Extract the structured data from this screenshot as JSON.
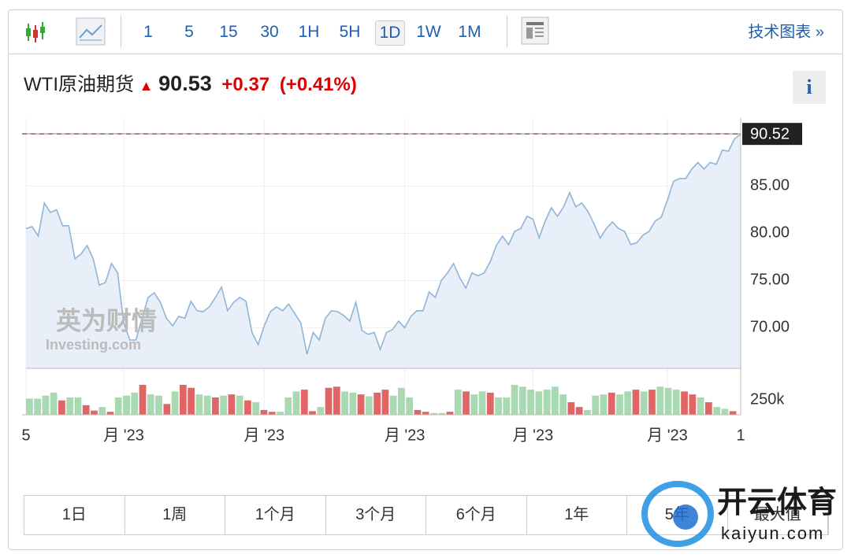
{
  "toolbar": {
    "intervals": [
      "1",
      "5",
      "15",
      "30",
      "1H",
      "5H",
      "1D",
      "1W",
      "1M"
    ],
    "active_interval": 6,
    "tech_link": "技术图表 »"
  },
  "header": {
    "title": "WTI原油期货",
    "price": 90.53,
    "change": "+0.37",
    "change_pct": "(+0.41%)",
    "info": "i"
  },
  "watermarks": {
    "cn": "英为财情",
    "en": "Investing.com",
    "brand": "开云体育",
    "brand_url": "kaiyun.com"
  },
  "chart_data": [
    {
      "type": "line",
      "color": "#8fb4d8",
      "fill": "#e9eff8",
      "last_line_color": "#e06666",
      "values": [
        80.5,
        80.7,
        79.7,
        83.2,
        82.2,
        82.5,
        80.8,
        80.8,
        77.3,
        77.8,
        78.7,
        77.3,
        74.5,
        74.8,
        76.8,
        75.8,
        70.5,
        68.7,
        68.7,
        71,
        73.2,
        73.7,
        72.7,
        71,
        70.2,
        71.2,
        71,
        72.8,
        71.8,
        71.7,
        72.2,
        73.2,
        74.3,
        71.8,
        72.7,
        73.2,
        72.8,
        69.5,
        68.2,
        70.2,
        71.7,
        72.2,
        71.8,
        72.5,
        71.5,
        70.5,
        67.2,
        69.5,
        68.7,
        71,
        71.8,
        71.7,
        71.3,
        70.7,
        72.7,
        69.7,
        69.3,
        69.5,
        67.7,
        69.5,
        69.8,
        70.7,
        70,
        71.2,
        71.8,
        71.8,
        73.8,
        73.2,
        75,
        75.8,
        76.8,
        75.3,
        74.2,
        75.8,
        75.5,
        75.8,
        77,
        78.7,
        79.7,
        78.8,
        80.2,
        80.5,
        81.8,
        81.5,
        79.5,
        81.3,
        82.7,
        81.8,
        82.8,
        84.3,
        82.8,
        83.2,
        82.3,
        81,
        79.5,
        80.5,
        81.2,
        80.5,
        80.2,
        78.8,
        79,
        79.8,
        80.2,
        81.3,
        81.7,
        83.5,
        85.5,
        85.8,
        85.8,
        86.8,
        87.5,
        86.8,
        87.5,
        87.3,
        88.8,
        88.7,
        90,
        90.5
      ],
      "xlim": [
        0,
        117
      ],
      "xticks": [
        {
          "value": 0,
          "label": "5"
        },
        {
          "value": 16,
          "label": "月 '23"
        },
        {
          "value": 39,
          "label": "月 '23"
        },
        {
          "value": 62,
          "label": "月 '23"
        },
        {
          "value": 83,
          "label": "月 '23"
        },
        {
          "value": 105,
          "label": "月 '23"
        },
        {
          "value": 117,
          "label": "1"
        }
      ],
      "ylim": [
        65.7,
        92.2
      ],
      "yticks": [
        {
          "value": 70,
          "label": "70.00"
        },
        {
          "value": 75,
          "label": "75.00"
        },
        {
          "value": 80,
          "label": "80.00"
        },
        {
          "value": 85,
          "label": "85.00"
        }
      ],
      "last_value": 90.52
    },
    {
      "type": "bar",
      "up_color": "#a8d9b0",
      "down_color": "#e06666",
      "values": [
        270000,
        270000,
        320000,
        370000,
        240000,
        290000,
        290000,
        160000,
        70000,
        130000,
        50000,
        290000,
        320000,
        370000,
        500000,
        340000,
        320000,
        180000,
        390000,
        500000,
        450000,
        340000,
        320000,
        290000,
        320000,
        340000,
        320000,
        240000,
        210000,
        80000,
        50000,
        50000,
        290000,
        390000,
        420000,
        60000,
        130000,
        450000,
        470000,
        390000,
        370000,
        340000,
        310000,
        370000,
        420000,
        320000,
        450000,
        290000,
        80000,
        50000,
        30000,
        30000,
        50000,
        420000,
        390000,
        340000,
        390000,
        370000,
        290000,
        290000,
        500000,
        470000,
        420000,
        390000,
        420000,
        470000,
        340000,
        210000,
        130000,
        80000,
        320000,
        340000,
        370000,
        340000,
        390000,
        420000,
        390000,
        420000,
        470000,
        450000,
        420000,
        390000,
        340000,
        290000,
        210000,
        130000,
        100000,
        60000
      ],
      "up": [
        true,
        true,
        true,
        true,
        false,
        true,
        true,
        false,
        false,
        true,
        false,
        true,
        true,
        true,
        false,
        true,
        true,
        false,
        true,
        false,
        false,
        true,
        true,
        false,
        true,
        false,
        true,
        false,
        true,
        false,
        false,
        true,
        true,
        true,
        false,
        false,
        true,
        false,
        false,
        true,
        true,
        false,
        true,
        false,
        false,
        true,
        true,
        true,
        false,
        false,
        true,
        true,
        false,
        true,
        false,
        true,
        true,
        false,
        true,
        true,
        true,
        true,
        true,
        true,
        true,
        true,
        true,
        false,
        false,
        true,
        true,
        true,
        false,
        true,
        true,
        false,
        true,
        false,
        true,
        true,
        true,
        false,
        false,
        true,
        false,
        true,
        true,
        false
      ],
      "ylim": [
        0,
        645000
      ],
      "yticks": [
        {
          "value": 250000,
          "label": "250k"
        }
      ]
    }
  ],
  "ranges": [
    "1日",
    "1周",
    "1个月",
    "3个月",
    "6个月",
    "1年",
    "5年",
    "最大值"
  ]
}
